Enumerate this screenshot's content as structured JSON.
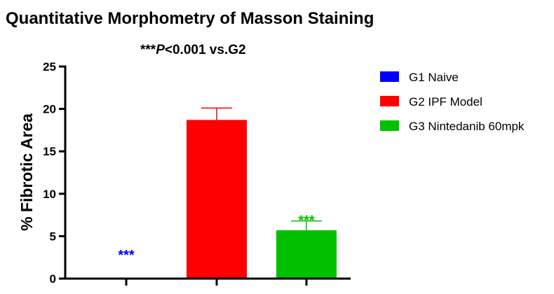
{
  "chart_data": {
    "type": "bar",
    "title": "Quantitative Morphometry of Masson Staining",
    "subtitle": {
      "stars": "***",
      "p": "P",
      "rest": "<0.001 vs.G2"
    },
    "xlabel": "",
    "ylabel": "% Fibrotic Area",
    "ylim": [
      0,
      25
    ],
    "yticks": [
      0,
      5,
      10,
      15,
      20,
      25
    ],
    "categories": [
      "G1 Naive",
      "G2 IPF Model",
      "G3 Nintedanib 60mpk"
    ],
    "values": [
      0,
      18.7,
      5.7
    ],
    "error_upper": [
      0,
      20.1,
      6.8
    ],
    "colors": [
      "#0000ff",
      "#ff0000",
      "#00c000"
    ],
    "annotations": [
      "***",
      "",
      "***"
    ],
    "legend_position": "right"
  }
}
